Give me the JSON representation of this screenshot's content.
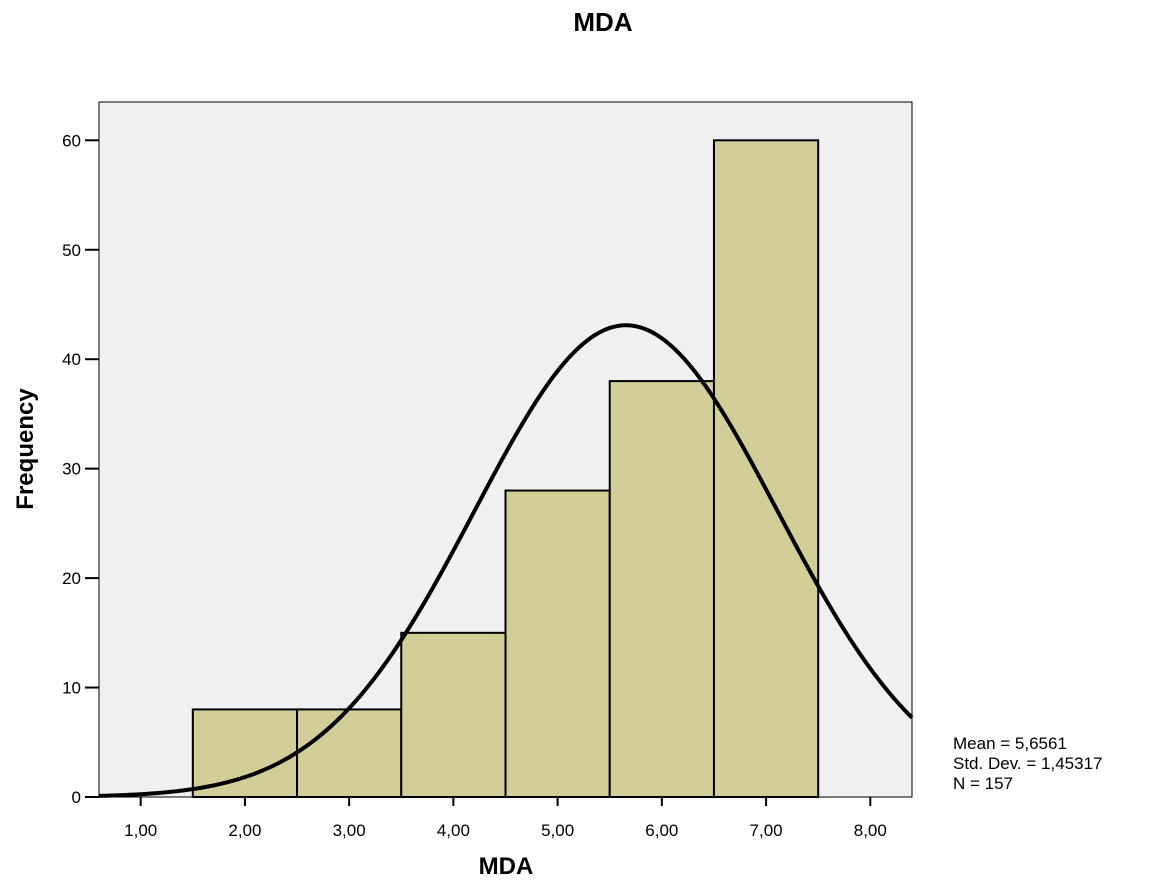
{
  "chart_data": {
    "type": "bar",
    "title": "MDA",
    "xlabel": "MDA",
    "ylabel": "Frequency",
    "xlim": [
      0.6,
      8.4
    ],
    "ylim": [
      0,
      63.5
    ],
    "x_ticks": [
      1,
      2,
      3,
      4,
      5,
      6,
      7,
      8
    ],
    "x_tick_labels": [
      "1,00",
      "2,00",
      "3,00",
      "4,00",
      "5,00",
      "6,00",
      "7,00",
      "8,00"
    ],
    "y_ticks": [
      0,
      10,
      20,
      30,
      40,
      50,
      60
    ],
    "y_tick_labels": [
      "0",
      "10",
      "20",
      "30",
      "40",
      "50",
      "60"
    ],
    "bins": [
      {
        "from": 1.5,
        "to": 2.5,
        "value": 8
      },
      {
        "from": 2.5,
        "to": 3.5,
        "value": 8
      },
      {
        "from": 3.5,
        "to": 4.5,
        "value": 15
      },
      {
        "from": 4.5,
        "to": 5.5,
        "value": 28
      },
      {
        "from": 5.5,
        "to": 6.5,
        "value": 38
      },
      {
        "from": 6.5,
        "to": 7.5,
        "value": 60
      }
    ],
    "normal_curve": {
      "mean": 5.6561,
      "std_dev": 1.45317,
      "n": 157,
      "bin_width": 1
    },
    "stats_lines": [
      "Mean = 5,6561",
      "Std. Dev. = 1,45317",
      "N = 157"
    ],
    "colors": {
      "bar_fill": "#d3ce98",
      "bar_stroke": "#000000",
      "plot_background": "#f0f0f0",
      "curve": "#000000"
    },
    "grid": false
  }
}
